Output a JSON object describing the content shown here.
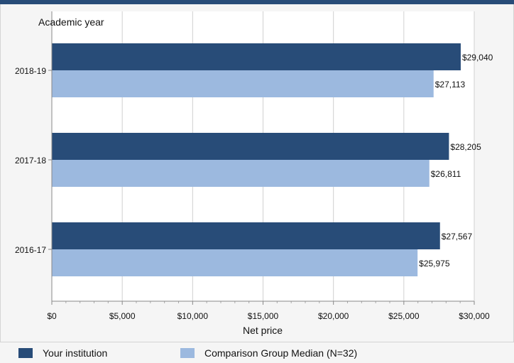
{
  "chart_data": {
    "type": "bar",
    "orientation": "horizontal",
    "title": "",
    "ylabel": "Academic year",
    "xlabel": "Net price",
    "categories": [
      "2018-19",
      "2017-18",
      "2016-17"
    ],
    "series": [
      {
        "name": "Your institution",
        "color": "#284c78",
        "values": [
          29040,
          28205,
          27567
        ],
        "labels": [
          "$29,040",
          "$28,205",
          "$27,567"
        ]
      },
      {
        "name": "Comparison Group Median (N=32)",
        "color": "#9cb9df",
        "values": [
          27113,
          26811,
          25975
        ],
        "labels": [
          "$27,113",
          "$26,811",
          "$25,975"
        ]
      }
    ],
    "xlim": [
      0,
      30000
    ],
    "xticks": [
      0,
      5000,
      10000,
      15000,
      20000,
      25000,
      30000
    ],
    "xtick_labels": [
      "$0",
      "$5,000",
      "$10,000",
      "$15,000",
      "$20,000",
      "$25,000",
      "$30,000"
    ],
    "grid": true,
    "legend_position": "bottom"
  }
}
